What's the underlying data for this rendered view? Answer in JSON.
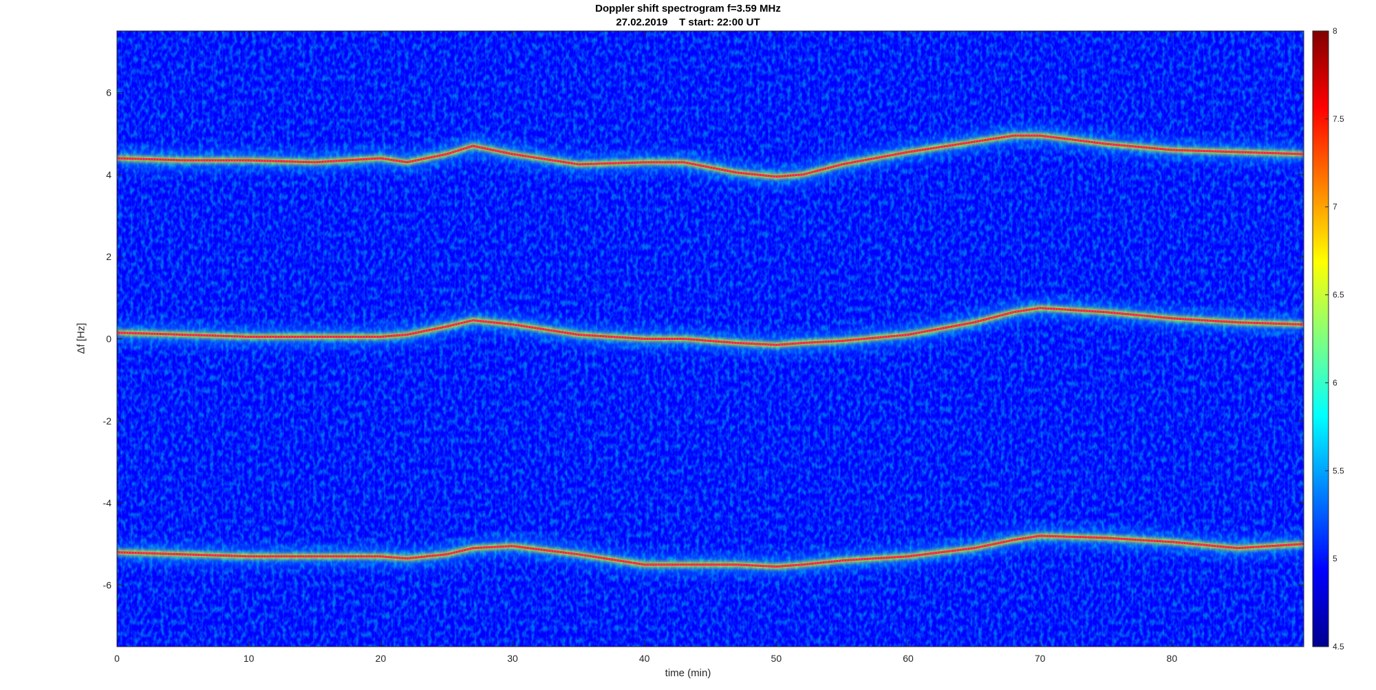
{
  "chart_data": {
    "type": "heatmap",
    "title": "Doppler shift spectrogram f=3.59 MHz",
    "subtitle": "27.02.2019    T start: 22:00 UT",
    "xlabel": "time (min)",
    "ylabel": "Δf [Hz]",
    "xlim": [
      0,
      90
    ],
    "ylim": [
      -7.5,
      7.5
    ],
    "x_ticks": [
      "0",
      "10",
      "20",
      "30",
      "40",
      "50",
      "60",
      "70",
      "80"
    ],
    "x_tick_values": [
      0,
      10,
      20,
      30,
      40,
      50,
      60,
      70,
      80
    ],
    "y_ticks": [
      "-6",
      "-4",
      "-2",
      "0",
      "2",
      "4",
      "6"
    ],
    "y_tick_values": [
      -6,
      -4,
      -2,
      0,
      2,
      4,
      6
    ],
    "colorbar": {
      "min": 4.5,
      "max": 8,
      "ticks": [
        "4.5",
        "5",
        "5.5",
        "6",
        "6.5",
        "7",
        "7.5",
        "8"
      ],
      "tick_values": [
        4.5,
        5,
        5.5,
        6,
        6.5,
        7,
        7.5,
        8
      ],
      "colormap": "jet"
    },
    "colormap_stops": [
      "#00008f",
      "#0000ff",
      "#00ffff",
      "#ffff00",
      "#ff0000",
      "#800000"
    ],
    "trace_color": "#ff40ff",
    "series": [
      {
        "x": [
          0,
          5,
          10,
          15,
          20,
          22,
          25,
          27,
          30,
          35,
          40,
          43,
          47,
          50,
          52,
          55,
          60,
          65,
          68,
          70,
          75,
          80,
          85,
          90
        ],
        "y": [
          4.4,
          4.35,
          4.35,
          4.3,
          4.4,
          4.3,
          4.5,
          4.7,
          4.5,
          4.25,
          4.3,
          4.3,
          4.05,
          3.95,
          4.0,
          4.25,
          4.55,
          4.8,
          4.95,
          4.95,
          4.75,
          4.6,
          4.55,
          4.5
        ]
      },
      {
        "x": [
          0,
          5,
          10,
          15,
          20,
          22,
          25,
          27,
          30,
          35,
          40,
          43,
          47,
          50,
          52,
          55,
          60,
          65,
          68,
          70,
          75,
          80,
          85,
          90
        ],
        "y": [
          0.15,
          0.1,
          0.05,
          0.05,
          0.05,
          0.1,
          0.3,
          0.45,
          0.35,
          0.1,
          0.0,
          0.0,
          -0.1,
          -0.15,
          -0.1,
          -0.05,
          0.1,
          0.4,
          0.65,
          0.75,
          0.65,
          0.5,
          0.4,
          0.35
        ]
      },
      {
        "x": [
          0,
          5,
          10,
          15,
          20,
          22,
          25,
          27,
          30,
          35,
          40,
          43,
          47,
          50,
          52,
          55,
          60,
          65,
          68,
          70,
          75,
          80,
          85,
          90
        ],
        "y": [
          -5.2,
          -5.25,
          -5.3,
          -5.3,
          -5.3,
          -5.35,
          -5.25,
          -5.1,
          -5.05,
          -5.25,
          -5.5,
          -5.5,
          -5.5,
          -5.55,
          -5.5,
          -5.4,
          -5.3,
          -5.1,
          -4.9,
          -4.8,
          -4.85,
          -4.95,
          -5.1,
          -5.0
        ]
      }
    ]
  }
}
